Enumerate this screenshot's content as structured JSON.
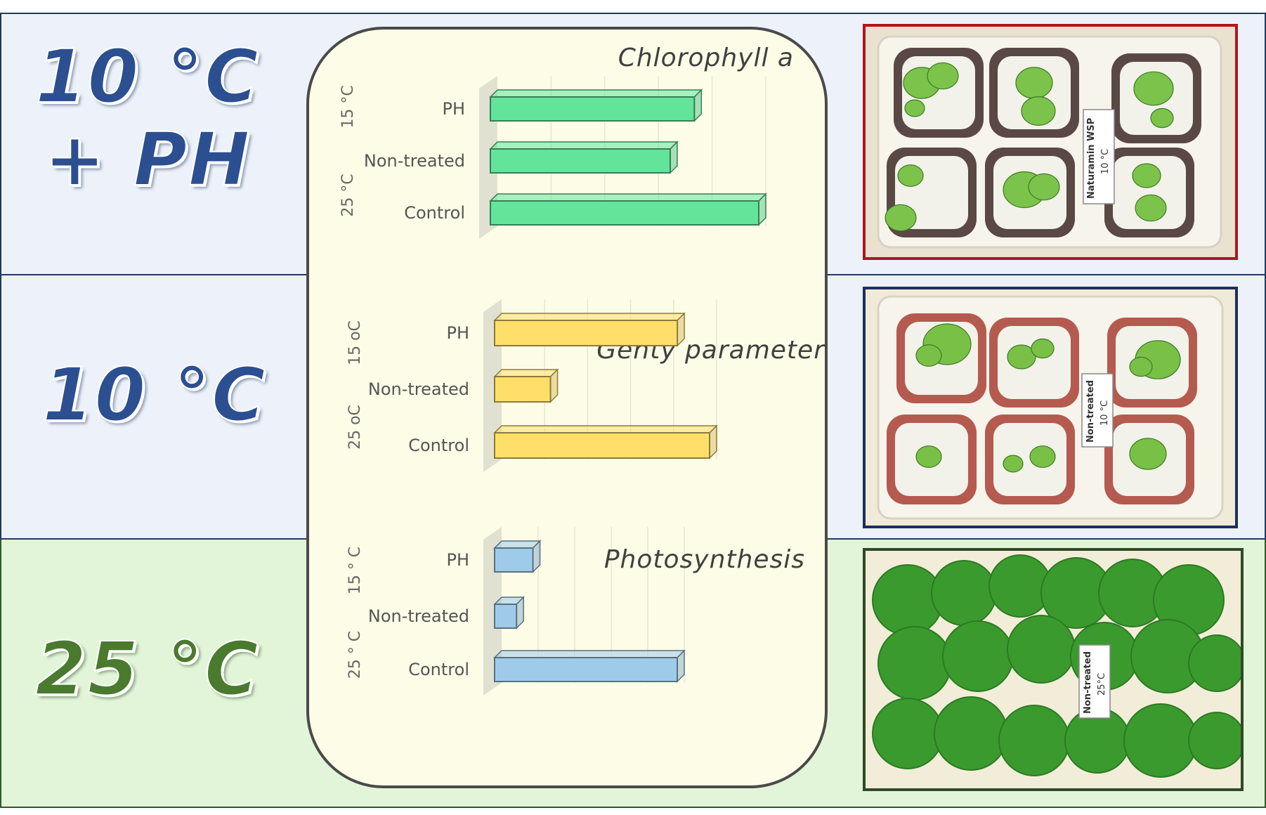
{
  "rows": {
    "r1": {
      "line1": "10 °C",
      "line2": "+ PH"
    },
    "r2": {
      "line1": "10 °C"
    },
    "r3": {
      "line1": "25 °C"
    }
  },
  "photos": {
    "p1": {
      "label_line1": "Naturamin WSP",
      "label_line2": "10 °C"
    },
    "p2": {
      "label_line1": "Non-treated",
      "label_line2": "10 °C"
    },
    "p3": {
      "label_line1": "Non-treated",
      "label_line2": "25°C"
    }
  },
  "colors": {
    "green_bar": "#62e59a",
    "yellow_bar": "#ffdf6a",
    "blue_bar": "#9fcbea",
    "frame_red": "#b3141b",
    "frame_navy": "#1f2f5a",
    "frame_green": "#2f4a24"
  },
  "chart_data": [
    {
      "type": "bar",
      "orientation": "horizontal",
      "title": "Chlorophyll a",
      "categories": [
        "PH",
        "Non-treated",
        "Control"
      ],
      "group_labels": [
        "15 °C",
        "25 °C"
      ],
      "values": [
        0.76,
        0.67,
        1.0
      ],
      "color": "#62e59a"
    },
    {
      "type": "bar",
      "orientation": "horizontal",
      "title": "Genty parameter",
      "categories": [
        "PH",
        "Non-treated",
        "Control"
      ],
      "group_labels": [
        "15 oC",
        "25 oC"
      ],
      "values": [
        0.85,
        0.26,
        1.0
      ],
      "color": "#ffdf6a"
    },
    {
      "type": "bar",
      "orientation": "horizontal",
      "title": "Photosynthesis",
      "categories": [
        "PH",
        "Non-treated",
        "Control"
      ],
      "group_labels": [
        "15 ° C",
        "25 ° C"
      ],
      "values": [
        0.21,
        0.12,
        1.0
      ],
      "color": "#9fcbea"
    }
  ]
}
